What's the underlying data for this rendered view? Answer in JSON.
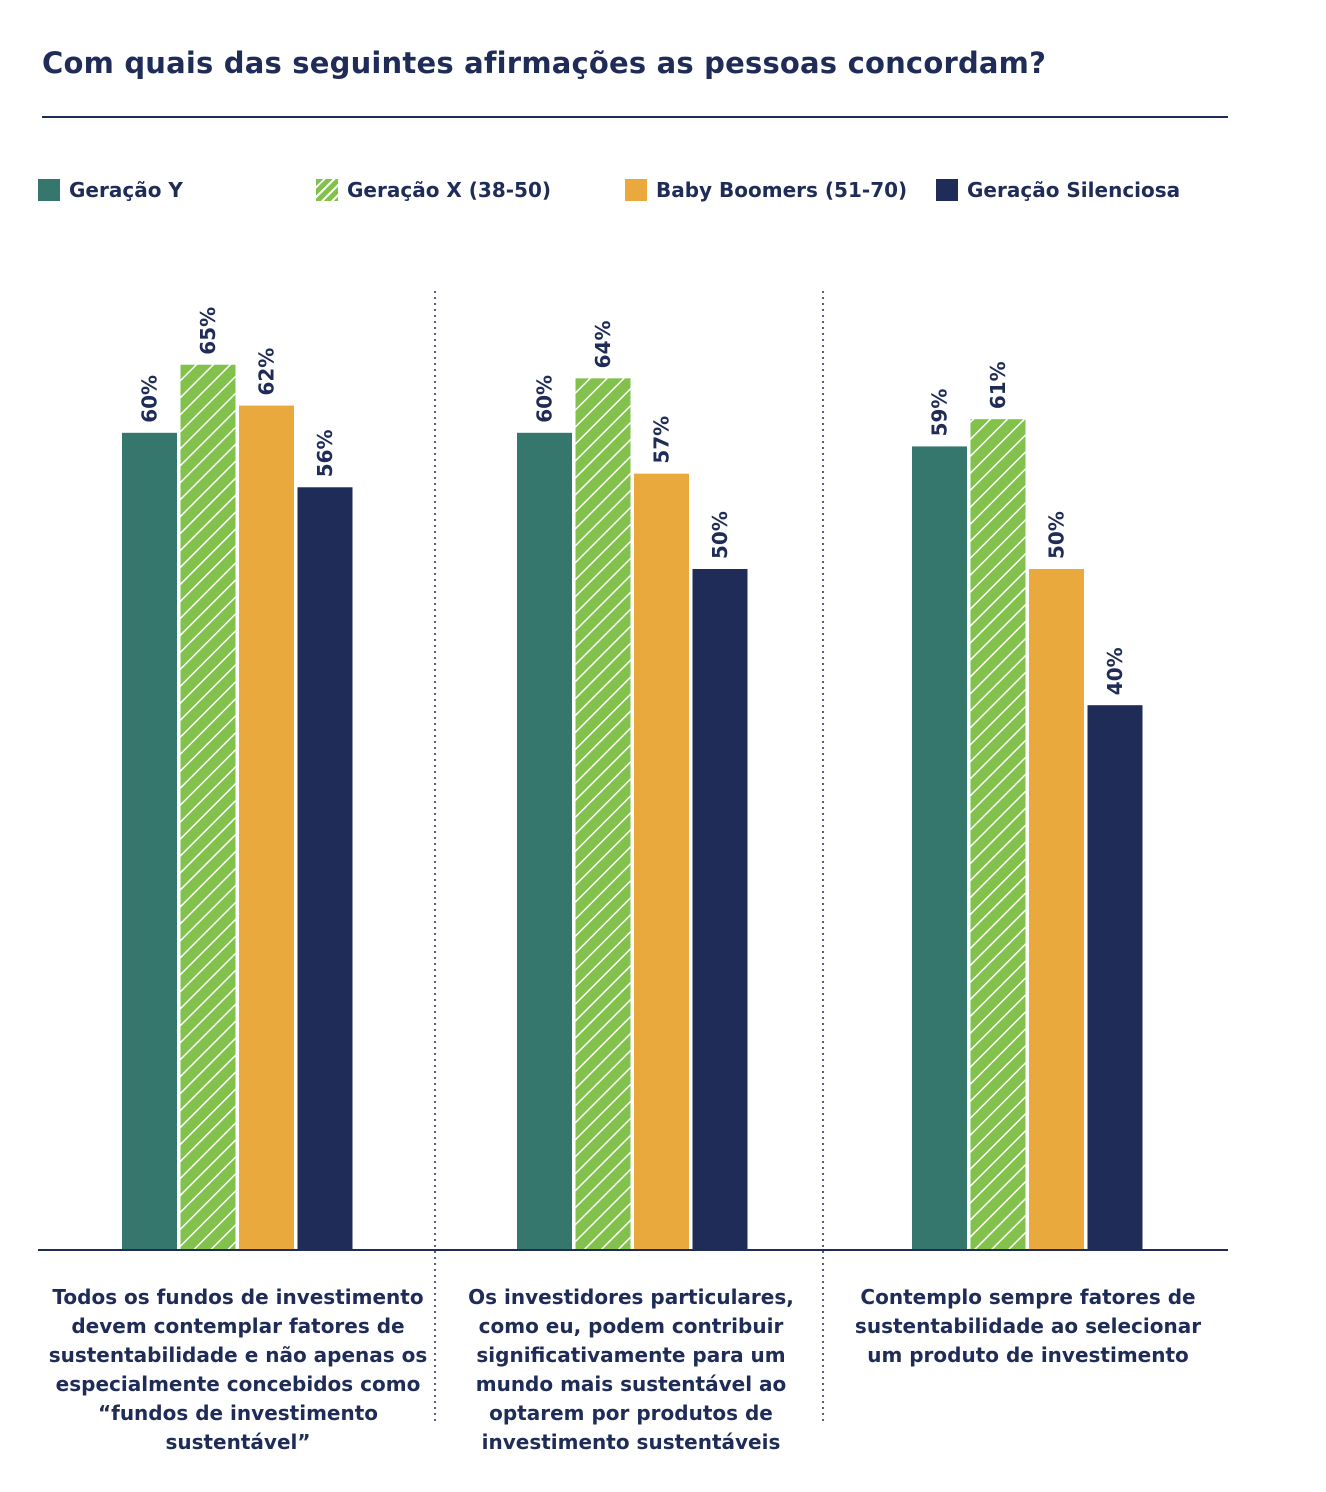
{
  "chart_data": {
    "type": "bar",
    "title": "Com quais das seguintes afirmações as pessoas concordam?",
    "categories": [
      "Todos os fundos de investimento devem contemplar fatores de sustentabilidade e não apenas os especialmente concebidos como “fundos de investimento sustentável”",
      "Os investidores particulares, como eu, podem contribuir significativamente para um mundo mais sustentável ao optarem por produtos de investimento sustentáveis",
      "Contemplo sempre fatores de sustentabilidade ao selecionar um produto de investimento"
    ],
    "series": [
      {
        "name": "Geração Y",
        "values": [
          60,
          60,
          59
        ],
        "labels": [
          "60%",
          "60%",
          "59%"
        ],
        "color": "#35766d",
        "pattern": "solid"
      },
      {
        "name": "Geração X (38-50)",
        "values": [
          65,
          64,
          61
        ],
        "labels": [
          "65%",
          "64%",
          "61%"
        ],
        "color": "#82c24c",
        "pattern": "hatched"
      },
      {
        "name": "Baby Boomers (51-70)",
        "values": [
          62,
          57,
          50
        ],
        "labels": [
          "62%",
          "57%",
          "50%"
        ],
        "color": "#eaa93d",
        "pattern": "solid"
      },
      {
        "name": "Geração Silenciosa",
        "values": [
          56,
          50,
          40
        ],
        "labels": [
          "56%",
          "50%",
          "40%"
        ],
        "color": "#1e2c57",
        "pattern": "solid"
      }
    ],
    "ylim": [
      0,
      70
    ],
    "grid": false,
    "legend_position": "top-left",
    "xlabel": "",
    "ylabel": ""
  }
}
